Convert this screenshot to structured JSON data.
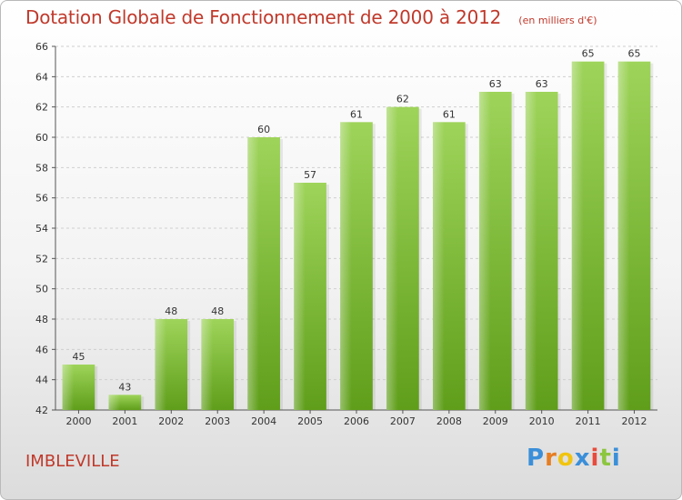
{
  "header": {
    "title": "Dotation Globale de Fonctionnement de 2000 à 2012",
    "subtitle": "(en milliers d'€)"
  },
  "footer": {
    "commune": "IMBLEVILLE",
    "logo_letters": [
      {
        "ch": "P",
        "color": "#3b8fd9"
      },
      {
        "ch": "r",
        "color": "#e67e22"
      },
      {
        "ch": "o",
        "color": "#f1c40f"
      },
      {
        "ch": "x",
        "color": "#3b8fd9"
      },
      {
        "ch": "i",
        "color": "#e74c3c"
      },
      {
        "ch": "t",
        "color": "#8cc63f"
      },
      {
        "ch": "i",
        "color": "#3b8fd9"
      }
    ]
  },
  "chart_data": {
    "type": "bar",
    "title": "Dotation Globale de Fonctionnement de 2000 à 2012",
    "subtitle": "(en milliers d'€)",
    "categories": [
      "2000",
      "2001",
      "2002",
      "2003",
      "2004",
      "2005",
      "2006",
      "2007",
      "2008",
      "2009",
      "2010",
      "2011",
      "2012"
    ],
    "values": [
      45,
      43,
      48,
      48,
      60,
      57,
      61,
      62,
      61,
      63,
      63,
      65,
      65
    ],
    "ylim": [
      42,
      66
    ],
    "yticks": [
      42,
      44,
      46,
      48,
      50,
      52,
      54,
      56,
      58,
      60,
      62,
      64,
      66
    ],
    "grid": true,
    "bar_color_top": "#9ed45a",
    "bar_color_bottom": "#5f9e1a"
  }
}
